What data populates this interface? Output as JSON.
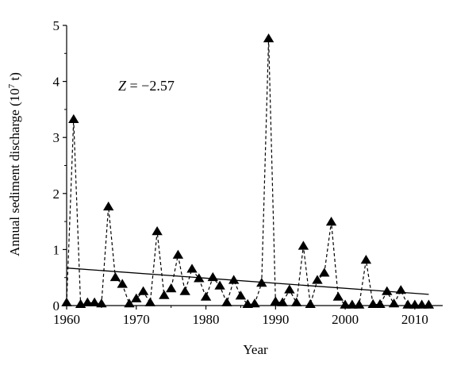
{
  "chart_data": {
    "type": "scatter",
    "xlabel": "Year",
    "ylabel": "Annual sediment discharge (10",
    "ylabel_exp": "7",
    "ylabel_unit": " t)",
    "annotation_var": "Z",
    "annotation_rest": " = −2.57",
    "xlim": [
      1960,
      2014
    ],
    "ylim": [
      0,
      5
    ],
    "xticks": [
      1960,
      1970,
      1980,
      1990,
      2000,
      2010
    ],
    "yticks": [
      0,
      1,
      2,
      3,
      4,
      5
    ],
    "xtick_labels": [
      "1960",
      "1970",
      "1980",
      "1990",
      "2000",
      "2010"
    ],
    "ytick_labels": [
      "0",
      "1",
      "2",
      "3",
      "4",
      "5"
    ],
    "marker": "filled-triangle",
    "series": [
      {
        "x": [
          1960,
          1961,
          1962,
          1963,
          1964,
          1965,
          1966,
          1967,
          1968,
          1969,
          1970,
          1971,
          1972,
          1973,
          1974,
          1975,
          1976,
          1977,
          1978,
          1979,
          1980,
          1981,
          1982,
          1983,
          1984,
          1985,
          1986,
          1987,
          1988,
          1989,
          1990,
          1991,
          1992,
          1993,
          1994,
          1995,
          1996,
          1997,
          1998,
          1999,
          2000,
          2001,
          2002,
          2003,
          2004,
          2005,
          2006,
          2007,
          2008,
          2009,
          2010,
          2011,
          2012
        ],
        "values": [
          0.05,
          3.32,
          0.02,
          0.05,
          0.05,
          0.03,
          1.76,
          0.5,
          0.38,
          0.03,
          0.12,
          0.25,
          0.05,
          1.32,
          0.18,
          0.3,
          0.9,
          0.25,
          0.65,
          0.48,
          0.15,
          0.5,
          0.35,
          0.05,
          0.45,
          0.17,
          0.02,
          0.03,
          0.4,
          4.76,
          0.07,
          0.05,
          0.28,
          0.05,
          1.06,
          0.02,
          0.45,
          0.58,
          1.49,
          0.15,
          0.01,
          0.01,
          0.01,
          0.81,
          0.02,
          0.02,
          0.25,
          0.03,
          0.27,
          0.01,
          0.01,
          0.01,
          0.01
        ]
      }
    ],
    "trend_line": {
      "x": [
        1960,
        2012
      ],
      "values": [
        0.67,
        0.2
      ]
    }
  }
}
